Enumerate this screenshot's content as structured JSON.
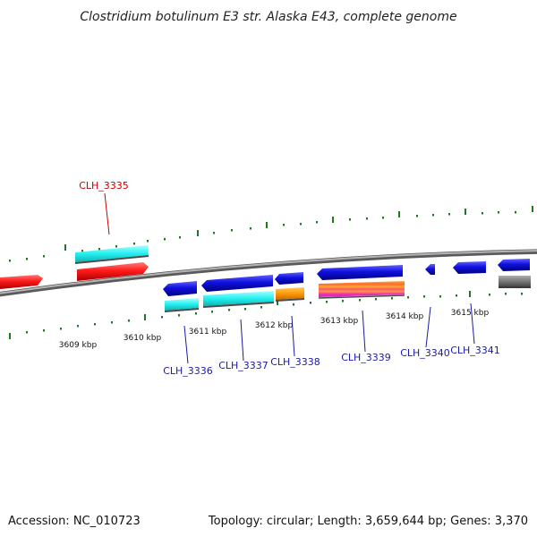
{
  "header": {
    "title": "Clostridium botulinum E3 str. Alaska E43, complete genome"
  },
  "footer": {
    "accession": "Accession: NC_010723",
    "stats": "Topology: circular; Length: 3,659,644 bp; Genes: 3,370"
  },
  "scale": {
    "ticks": [
      "3609 kbp",
      "3610 kbp",
      "3611 kbp",
      "3612 kbp",
      "3613 kbp",
      "3614 kbp",
      "3615 kbp"
    ]
  },
  "genes": {
    "labels": [
      "CLH_3335",
      "CLH_3336",
      "CLH_3337",
      "CLH_3338",
      "CLH_3339",
      "CLH_3340",
      "CLH_3341"
    ]
  },
  "colors": {
    "backbone": "#8a8a8a",
    "tick": "#1f7a1f",
    "label_red": "#cc0000",
    "label_blue": "#1a1aa6",
    "gene_red": "#ff1a1a",
    "gene_blue": "#1010e0",
    "cds_cyan": "#22f0f0",
    "cds_orange": "#ff9900",
    "cds_magenta": "#ee22aa",
    "cds_gray": "#7a7a7a"
  }
}
